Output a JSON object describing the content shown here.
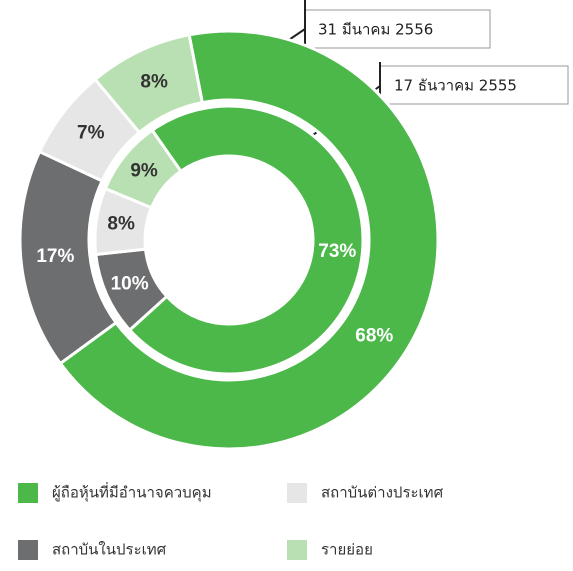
{
  "chart_data": {
    "type": "donut",
    "categories": [
      "ผู้ถือหุ้นที่มีอำนาจควบคุม",
      "สถาบันในประเทศ",
      "สถาบันต่างประเทศ",
      "รายย่อย"
    ],
    "colors": [
      "#4cb84a",
      "#6d6e70",
      "#e6e6e7",
      "#b9e0b2"
    ],
    "series": [
      {
        "name": "31 มีนาคม 2556",
        "values": [
          68,
          17,
          7,
          8
        ],
        "value_labels": [
          "68%",
          "17%",
          "7%",
          "8%"
        ]
      },
      {
        "name": "17 ธันวาคม 2555",
        "values": [
          73,
          10,
          8,
          9
        ],
        "value_labels": [
          "73%",
          "10%",
          "8%",
          "9%"
        ]
      }
    ]
  }
}
